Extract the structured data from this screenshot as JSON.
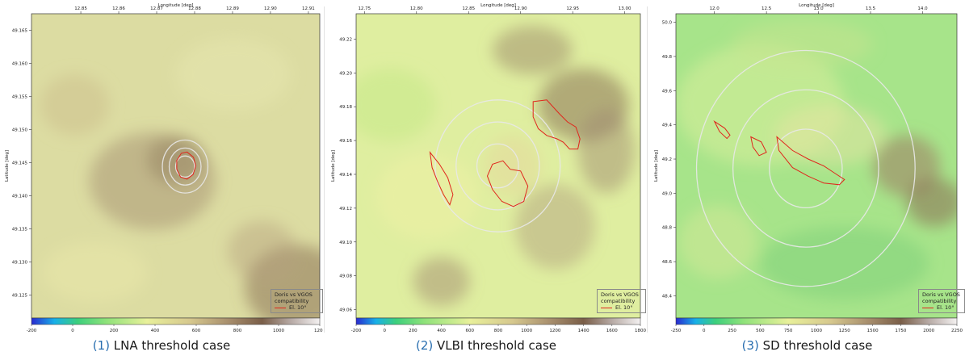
{
  "colors": {
    "contour": "#e0261c",
    "range_ring": "#e8e8e8",
    "caption_number": "#2a6fb0"
  },
  "panels": [
    {
      "caption_number": "(1)",
      "caption_text": "LNA threshold case",
      "legend_title": "Doris vs VGOS compatibility",
      "legend_entry": "El. 10°"
    },
    {
      "caption_number": "(2)",
      "caption_text": "VLBI threshold case",
      "legend_title": "Doris vs VGOS compatibility",
      "legend_entry": "El. 10°"
    },
    {
      "caption_number": "(3)",
      "caption_text": "SD threshold case",
      "legend_title": "Doris vs VGOS compatibility",
      "legend_entry": "El. 10°"
    }
  ],
  "chart_data": [
    {
      "type": "heatmap",
      "title": "",
      "xlabel": "Longitude [deg]",
      "ylabel": "Latitude [deg]",
      "xlim": [
        12.837,
        12.913
      ],
      "ylim": [
        49.1215,
        49.1675
      ],
      "x_ticks": [
        "12.85",
        "12.86",
        "12.87",
        "12.88",
        "12.89",
        "12.90",
        "12.91"
      ],
      "x_tick_values": [
        12.85,
        12.86,
        12.87,
        12.88,
        12.89,
        12.9,
        12.91
      ],
      "y_ticks": [
        "49.125",
        "49.130",
        "49.135",
        "49.140",
        "49.145",
        "49.150",
        "49.155",
        "49.160",
        "49.165"
      ],
      "y_tick_values": [
        49.125,
        49.13,
        49.135,
        49.14,
        49.145,
        49.15,
        49.155,
        49.16,
        49.165
      ],
      "colorbar_range": [
        -200,
        1200
      ],
      "colorbar_ticks": [
        "-200",
        "0",
        "200",
        "400",
        "600",
        "800",
        "1000",
        "1200"
      ],
      "colorbar_tick_values": [
        -200,
        0,
        200,
        400,
        600,
        800,
        1000,
        1200
      ],
      "station": {
        "lon": 12.8775,
        "lat": 49.1444
      },
      "rings": [
        {
          "dx": 0.0025,
          "dy": 0.0016
        },
        {
          "dx": 0.0042,
          "dy": 0.0028
        },
        {
          "dx": 0.006,
          "dy": 0.004
        }
      ],
      "contour_series": [
        {
          "name": "El. 10°",
          "points": [
            [
              12.8753,
              49.1453
            ],
            [
              12.8765,
              49.1464
            ],
            [
              12.878,
              49.1466
            ],
            [
              12.8797,
              49.1458
            ],
            [
              12.8803,
              49.1445
            ],
            [
              12.8796,
              49.1432
            ],
            [
              12.878,
              49.1425
            ],
            [
              12.8763,
              49.1428
            ],
            [
              12.8753,
              49.144
            ],
            [
              12.8753,
              49.1453
            ]
          ]
        }
      ],
      "legend": "bottom-right",
      "grid": false
    },
    {
      "type": "heatmap",
      "title": "",
      "xlabel": "Longitude [deg]",
      "ylabel": "Latitude [deg]",
      "xlim": [
        12.742,
        13.015
      ],
      "ylim": [
        49.055,
        49.235
      ],
      "x_ticks": [
        "12.75",
        "12.80",
        "12.85",
        "12.90",
        "12.95",
        "13.00"
      ],
      "x_tick_values": [
        12.75,
        12.8,
        12.85,
        12.9,
        12.95,
        13.0
      ],
      "y_ticks": [
        "49.06",
        "49.08",
        "49.10",
        "49.12",
        "49.14",
        "49.16",
        "49.18",
        "49.20",
        "49.22"
      ],
      "y_tick_values": [
        49.06,
        49.08,
        49.1,
        49.12,
        49.14,
        49.16,
        49.18,
        49.2,
        49.22
      ],
      "colorbar_range": [
        -200,
        1800
      ],
      "colorbar_ticks": [
        "-200",
        "0",
        "200",
        "400",
        "600",
        "800",
        "1000",
        "1200",
        "1400",
        "1600",
        "1800"
      ],
      "colorbar_tick_values": [
        -200,
        0,
        200,
        400,
        600,
        800,
        1000,
        1200,
        1400,
        1600,
        1800
      ],
      "station": {
        "lon": 12.878,
        "lat": 49.145
      },
      "rings": [
        {
          "dx": 0.02,
          "dy": 0.013
        },
        {
          "dx": 0.04,
          "dy": 0.026
        },
        {
          "dx": 0.06,
          "dy": 0.039
        }
      ],
      "contour_series": [
        {
          "name": "El. 10°",
          "points": [
            [
              12.912,
              49.183
            ],
            [
              12.925,
              49.184
            ],
            [
              12.937,
              49.176
            ],
            [
              12.945,
              49.171
            ],
            [
              12.953,
              49.168
            ],
            [
              12.957,
              49.161
            ],
            [
              12.955,
              49.155
            ],
            [
              12.947,
              49.155
            ],
            [
              12.941,
              49.159
            ],
            [
              12.935,
              49.161
            ],
            [
              12.925,
              49.163
            ],
            [
              12.917,
              49.167
            ],
            [
              12.912,
              49.174
            ],
            [
              12.912,
              49.183
            ]
          ]
        },
        {
          "name": "El. 10°",
          "points": [
            [
              12.813,
              49.153
            ],
            [
              12.822,
              49.146
            ],
            [
              12.83,
              49.138
            ],
            [
              12.835,
              49.128
            ],
            [
              12.832,
              49.122
            ],
            [
              12.826,
              49.128
            ],
            [
              12.82,
              49.136
            ],
            [
              12.815,
              49.144
            ],
            [
              12.813,
              49.153
            ]
          ]
        },
        {
          "name": "El. 10°",
          "points": [
            [
              12.868,
              49.139
            ],
            [
              12.873,
              49.146
            ],
            [
              12.883,
              49.148
            ],
            [
              12.89,
              49.143
            ],
            [
              12.9,
              49.142
            ],
            [
              12.907,
              49.133
            ],
            [
              12.903,
              49.124
            ],
            [
              12.893,
              49.121
            ],
            [
              12.882,
              49.124
            ],
            [
              12.873,
              49.131
            ],
            [
              12.868,
              49.139
            ]
          ]
        }
      ],
      "legend": "bottom-right",
      "grid": false
    },
    {
      "type": "heatmap",
      "title": "",
      "xlabel": "Longitude [deg]",
      "ylabel": "Latitude [deg]",
      "xlim": [
        11.63,
        14.33
      ],
      "ylim": [
        48.27,
        50.05
      ],
      "x_ticks": [
        "12.0",
        "12.5",
        "13.0",
        "13.5",
        "14.0"
      ],
      "x_tick_values": [
        12.0,
        12.5,
        13.0,
        13.5,
        14.0
      ],
      "y_ticks": [
        "48.4",
        "48.6",
        "48.8",
        "49.0",
        "49.2",
        "49.4",
        "49.6",
        "49.8",
        "50.0"
      ],
      "y_tick_values": [
        48.4,
        48.6,
        48.8,
        49.0,
        49.2,
        49.4,
        49.6,
        49.8,
        50.0
      ],
      "colorbar_range": [
        -250,
        2250
      ],
      "colorbar_ticks": [
        "-250",
        "0",
        "250",
        "500",
        "750",
        "1000",
        "1250",
        "1500",
        "1750",
        "2000",
        "2250"
      ],
      "colorbar_tick_values": [
        -250,
        0,
        250,
        500,
        750,
        1000,
        1250,
        1500,
        1750,
        2000,
        2250
      ],
      "station": {
        "lon": 12.878,
        "lat": 49.145
      },
      "rings": [
        {
          "dx": 0.35,
          "dy": 0.23
        },
        {
          "dx": 0.7,
          "dy": 0.46
        },
        {
          "dx": 1.05,
          "dy": 0.69
        }
      ],
      "contour_series": [
        {
          "name": "El. 10°",
          "points": [
            [
              12.6,
              49.33
            ],
            [
              12.75,
              49.25
            ],
            [
              12.9,
              49.2
            ],
            [
              13.05,
              49.16
            ],
            [
              13.15,
              49.12
            ],
            [
              13.25,
              49.08
            ],
            [
              13.2,
              49.05
            ],
            [
              13.05,
              49.06
            ],
            [
              12.9,
              49.1
            ],
            [
              12.75,
              49.15
            ],
            [
              12.62,
              49.25
            ],
            [
              12.6,
              49.33
            ]
          ]
        },
        {
          "name": "El. 10°",
          "points": [
            [
              12.0,
              49.42
            ],
            [
              12.1,
              49.38
            ],
            [
              12.15,
              49.34
            ],
            [
              12.12,
              49.32
            ],
            [
              12.05,
              49.36
            ],
            [
              12.0,
              49.42
            ]
          ]
        },
        {
          "name": "El. 10°",
          "points": [
            [
              12.35,
              49.33
            ],
            [
              12.45,
              49.3
            ],
            [
              12.5,
              49.24
            ],
            [
              12.43,
              49.22
            ],
            [
              12.37,
              49.27
            ],
            [
              12.35,
              49.33
            ]
          ]
        }
      ],
      "legend": "bottom-right",
      "grid": false
    }
  ]
}
